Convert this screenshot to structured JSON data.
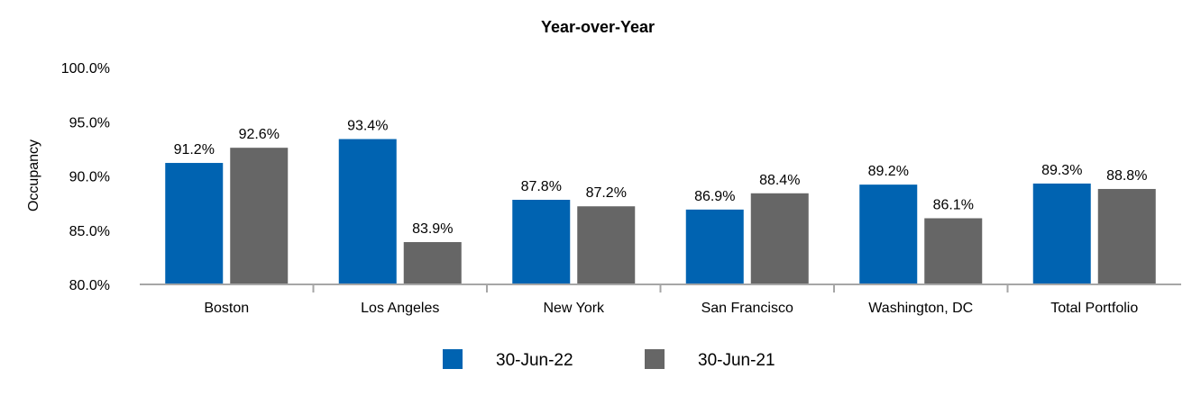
{
  "chart_data": {
    "type": "bar",
    "title": "Year-over-Year",
    "xlabel": "",
    "ylabel": "Occupancy",
    "ylim": [
      80,
      100
    ],
    "yticks": [
      "100.0%",
      "95.0%",
      "90.0%",
      "85.0%",
      "80.0%"
    ],
    "ytick_values": [
      100,
      95,
      90,
      85,
      80
    ],
    "grid": false,
    "legend_position": "bottom",
    "categories": [
      "Boston",
      "Los Angeles",
      "New York",
      "San Francisco",
      "Washington, DC",
      "Total Portfolio"
    ],
    "series": [
      {
        "name": "30-Jun-22",
        "color": "#0063B1",
        "values": [
          91.2,
          93.4,
          87.8,
          86.9,
          89.2,
          89.3
        ],
        "labels": [
          "91.2%",
          "93.4%",
          "87.8%",
          "86.9%",
          "89.2%",
          "89.3%"
        ]
      },
      {
        "name": "30-Jun-21",
        "color": "#666666",
        "values": [
          92.6,
          83.9,
          87.2,
          88.4,
          86.1,
          88.8
        ],
        "labels": [
          "92.6%",
          "83.9%",
          "87.2%",
          "88.4%",
          "86.1%",
          "88.8%"
        ]
      }
    ],
    "axis_color": "#A6A6A6"
  }
}
